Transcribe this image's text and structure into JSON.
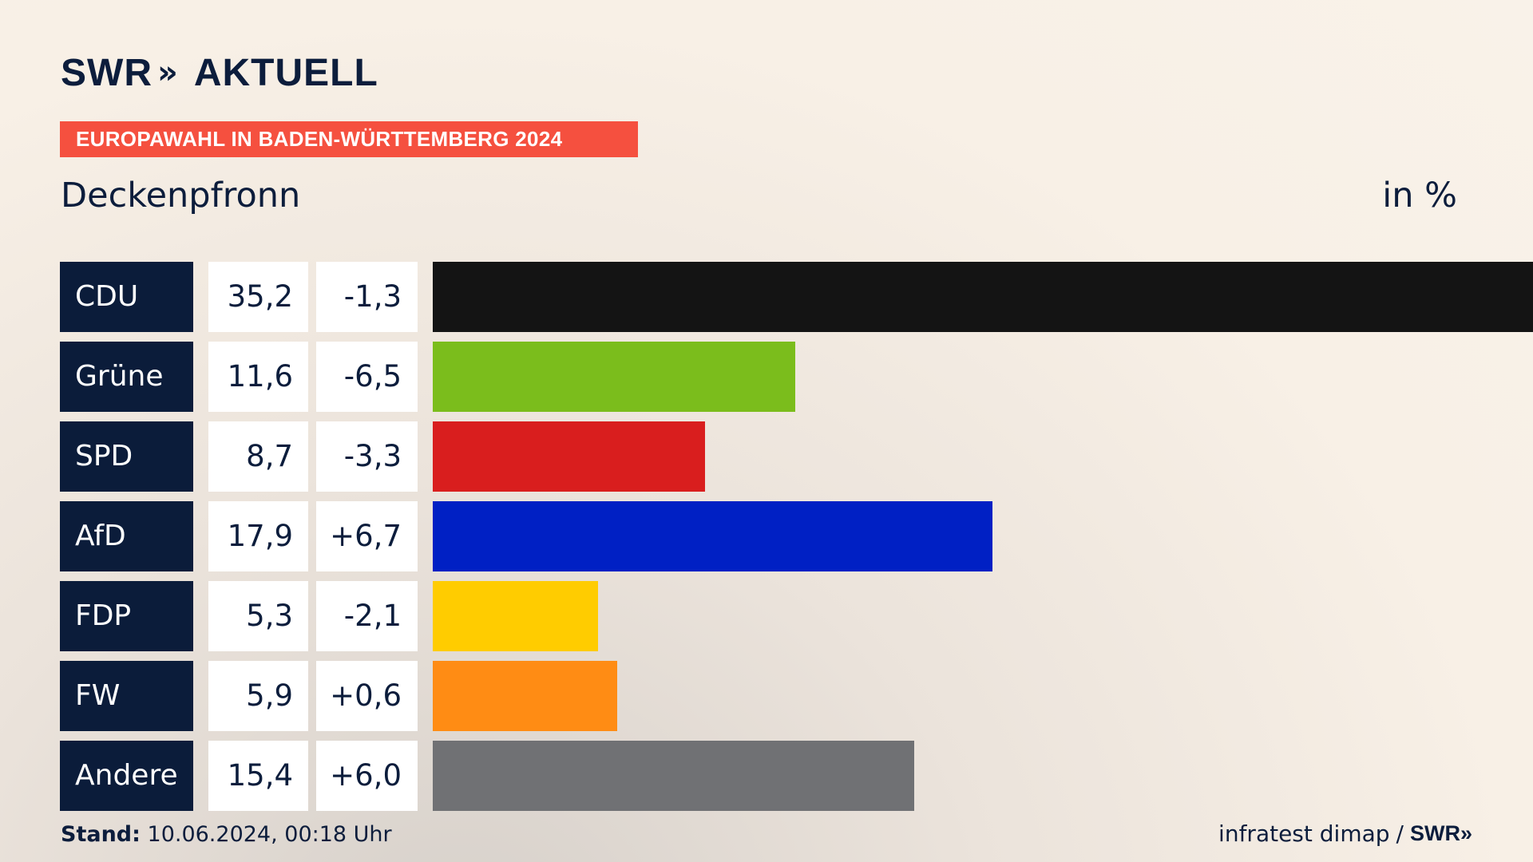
{
  "brand": {
    "name": "SWR",
    "arrows": "»",
    "product": "AKTUELL"
  },
  "banner": {
    "text": "EUROPAWAHL IN BADEN-WÜRTTEMBERG 2024"
  },
  "place": "Deckenpfronn",
  "unit": "in %",
  "footer": {
    "stand_label": "Stand:",
    "stand_value": "10.06.2024, 00:18 Uhr",
    "source": "infratest dimap",
    "separator": "/",
    "source_brand": "SWR",
    "source_arrows": "»"
  },
  "chart_data": {
    "type": "bar",
    "orientation": "horizontal",
    "categories": [
      "CDU",
      "Grüne",
      "SPD",
      "AfD",
      "FDP",
      "FW",
      "Andere"
    ],
    "values": [
      35.2,
      11.6,
      8.7,
      17.9,
      5.3,
      5.9,
      15.4
    ],
    "value_labels": [
      "35,2",
      "11,6",
      "8,7",
      "17,9",
      "5,3",
      "5,9",
      "15,4"
    ],
    "changes": [
      -1.3,
      -6.5,
      -3.3,
      6.7,
      -2.1,
      0.6,
      6.0
    ],
    "change_labels": [
      "-1,3",
      "-6,5",
      "-3,3",
      "+6,7",
      "-2,1",
      "+0,6",
      "+6,0"
    ],
    "colors": [
      "#141414",
      "#7bbd1c",
      "#d91e1e",
      "#0020c4",
      "#ffcc00",
      "#ff8c14",
      "#707174"
    ],
    "xlim": [
      0,
      35.2
    ]
  }
}
